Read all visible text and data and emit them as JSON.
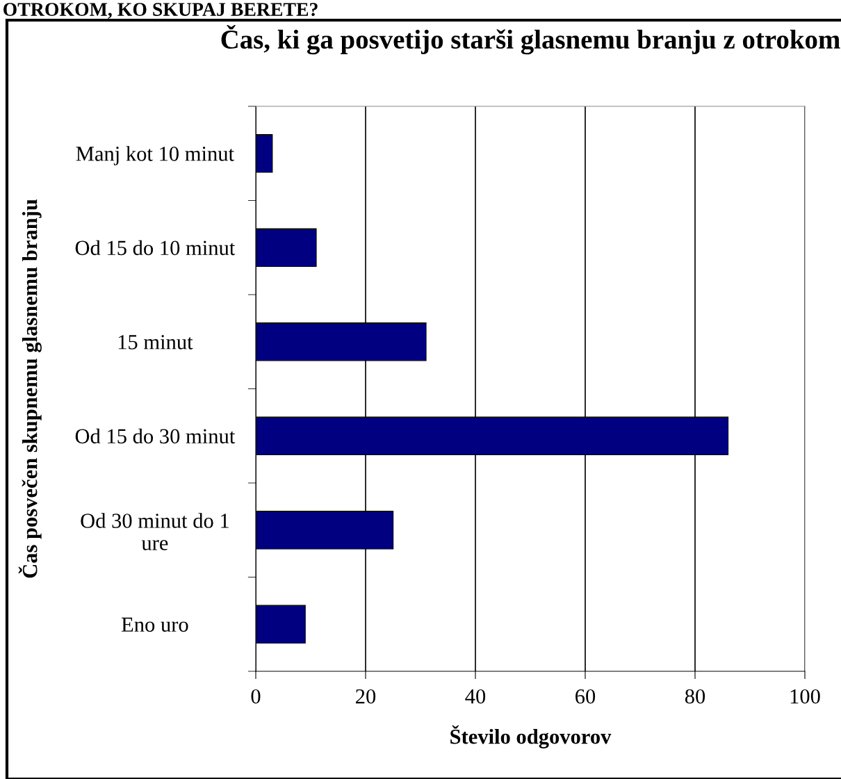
{
  "chart_data": {
    "type": "bar",
    "orientation": "horizontal",
    "title": "Čas, ki ga posvetijo starši glasnemu branju z otrokom",
    "xlabel": "Število odgovorov",
    "ylabel": "Čas posvečen skupnemu glasnemu branju",
    "categories": [
      "Manj kot 10 minut",
      "Od 15 do 10 minut",
      "15 minut",
      "Od 15 do 30 minut",
      "Od 30 minut do 1\nure",
      "Eno uro"
    ],
    "values": [
      3,
      11,
      31,
      86,
      25,
      9
    ],
    "color": "#000080",
    "xlim": [
      0,
      100
    ],
    "xticks": [
      0,
      20,
      40,
      60,
      80,
      100
    ],
    "grid": "x",
    "annotations": [
      "OTROKOM, KO SKUPAJ BERETE?"
    ]
  }
}
